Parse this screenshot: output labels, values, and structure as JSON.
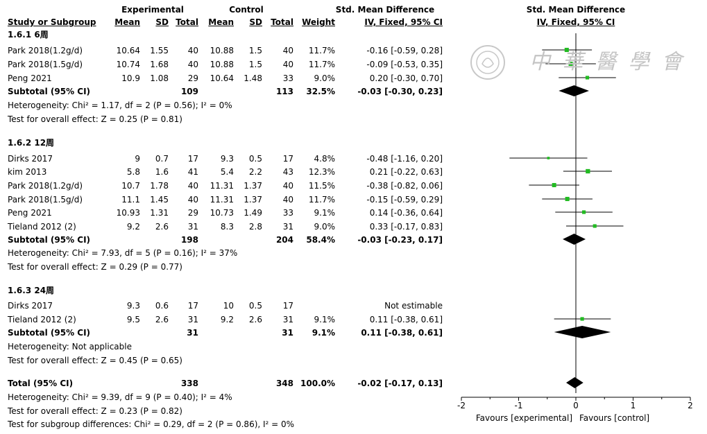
{
  "header": {
    "group_experimental": "Experimental",
    "group_control": "Control",
    "smd_title": "Std. Mean Difference",
    "smd_sub": "IV, Fixed, 95% CI",
    "plot_title": "Std. Mean Difference",
    "plot_sub": "IV, Fixed, 95% CI",
    "cols": {
      "study": "Study or Subgroup",
      "mean": "Mean",
      "sd": "SD",
      "total": "Total",
      "weight": "Weight"
    }
  },
  "watermark_text": "中 華 醫 學 會",
  "subgroups": [
    {
      "title": "1.6.1 6周",
      "studies": [
        {
          "name": "Park 2018(1.2g/d)",
          "em": "10.64",
          "esd": "1.55",
          "et": "40",
          "cm": "10.88",
          "csd": "1.5",
          "ct": "40",
          "w": "11.7%",
          "ci": "-0.16 [-0.59, 0.28]"
        },
        {
          "name": "Park 2018(1.5g/d)",
          "em": "10.74",
          "esd": "1.68",
          "et": "40",
          "cm": "10.88",
          "csd": "1.5",
          "ct": "40",
          "w": "11.7%",
          "ci": "-0.09 [-0.53, 0.35]"
        },
        {
          "name": "Peng 2021",
          "em": "10.9",
          "esd": "1.08",
          "et": "29",
          "cm": "10.64",
          "csd": "1.48",
          "ct": "33",
          "w": "9.0%",
          "ci": "0.20 [-0.30, 0.70]"
        }
      ],
      "subtotal": {
        "label": "Subtotal (95% CI)",
        "et": "109",
        "ct": "113",
        "w": "32.5%",
        "ci": "-0.03 [-0.30, 0.23]"
      },
      "heterogeneity": "Heterogeneity: Chi² = 1.17, df = 2 (P = 0.56); I² = 0%",
      "overall": "Test for overall effect: Z = 0.25 (P = 0.81)"
    },
    {
      "title": "1.6.2 12周",
      "studies": [
        {
          "name": "Dirks 2017",
          "em": "9",
          "esd": "0.7",
          "et": "17",
          "cm": "9.3",
          "csd": "0.5",
          "ct": "17",
          "w": "4.8%",
          "ci": "-0.48 [-1.16, 0.20]"
        },
        {
          "name": "kim 2013",
          "em": "5.8",
          "esd": "1.6",
          "et": "41",
          "cm": "5.4",
          "csd": "2.2",
          "ct": "43",
          "w": "12.3%",
          "ci": "0.21 [-0.22, 0.63]"
        },
        {
          "name": "Park 2018(1.2g/d)",
          "em": "10.7",
          "esd": "1.78",
          "et": "40",
          "cm": "11.31",
          "csd": "1.37",
          "ct": "40",
          "w": "11.5%",
          "ci": "-0.38 [-0.82, 0.06]"
        },
        {
          "name": "Park 2018(1.5g/d)",
          "em": "11.1",
          "esd": "1.45",
          "et": "40",
          "cm": "11.31",
          "csd": "1.37",
          "ct": "40",
          "w": "11.7%",
          "ci": "-0.15 [-0.59, 0.29]"
        },
        {
          "name": "Peng 2021",
          "em": "10.93",
          "esd": "1.31",
          "et": "29",
          "cm": "10.73",
          "csd": "1.49",
          "ct": "33",
          "w": "9.1%",
          "ci": "0.14 [-0.36, 0.64]"
        },
        {
          "name": "Tieland 2012 (2)",
          "em": "9.2",
          "esd": "2.6",
          "et": "31",
          "cm": "8.3",
          "csd": "2.8",
          "ct": "31",
          "w": "9.0%",
          "ci": "0.33 [-0.17, 0.83]"
        }
      ],
      "subtotal": {
        "label": "Subtotal (95% CI)",
        "et": "198",
        "ct": "204",
        "w": "58.4%",
        "ci": "-0.03 [-0.23, 0.17]"
      },
      "heterogeneity": "Heterogeneity: Chi² = 7.93, df = 5 (P = 0.16); I² = 37%",
      "overall": "Test for overall effect: Z = 0.29 (P = 0.77)"
    },
    {
      "title": "1.6.3 24周",
      "studies": [
        {
          "name": "Dirks 2017",
          "em": "9.3",
          "esd": "0.6",
          "et": "17",
          "cm": "10",
          "csd": "0.5",
          "ct": "17",
          "w": "",
          "ci": "Not estimable"
        },
        {
          "name": "Tieland 2012 (2)",
          "em": "9.5",
          "esd": "2.6",
          "et": "31",
          "cm": "9.2",
          "csd": "2.6",
          "ct": "31",
          "w": "9.1%",
          "ci": "0.11 [-0.38, 0.61]"
        }
      ],
      "subtotal": {
        "label": "Subtotal (95% CI)",
        "et": "31",
        "ct": "31",
        "w": "9.1%",
        "ci": "0.11 [-0.38, 0.61]"
      },
      "heterogeneity": "Heterogeneity: Not applicable",
      "overall": "Test for overall effect: Z = 0.45 (P = 0.65)"
    }
  ],
  "total": {
    "label": "Total (95% CI)",
    "et": "338",
    "ct": "348",
    "w": "100.0%",
    "ci": "-0.02 [-0.17, 0.13]"
  },
  "footer": [
    "Heterogeneity: Chi² = 9.39, df = 9 (P = 0.40); I² = 4%",
    "Test for overall effect: Z = 0.23 (P = 0.82)",
    "Test for subgroup differences: Chi² = 0.29, df = 2 (P = 0.86), I² = 0%"
  ],
  "axis": {
    "ticks": [
      "-2",
      "-1",
      "0",
      "1",
      "2"
    ],
    "favours_left": "Favours [experimental]",
    "favours_right": "Favours [control]"
  },
  "colors": {
    "marker": "#22bb22",
    "line": "#000000",
    "watermark": "#bbbbbb"
  },
  "chart_data": {
    "type": "scatter",
    "xlim": [
      -2,
      2
    ],
    "null_line": 0,
    "studies": [
      {
        "group": "1.6.1",
        "est": -0.16,
        "lo": -0.59,
        "hi": 0.28,
        "weight": 11.7
      },
      {
        "group": "1.6.1",
        "est": -0.09,
        "lo": -0.53,
        "hi": 0.35,
        "weight": 11.7
      },
      {
        "group": "1.6.1",
        "est": 0.2,
        "lo": -0.3,
        "hi": 0.7,
        "weight": 9.0
      },
      {
        "group": "1.6.2",
        "est": -0.48,
        "lo": -1.16,
        "hi": 0.2,
        "weight": 4.8
      },
      {
        "group": "1.6.2",
        "est": 0.21,
        "lo": -0.22,
        "hi": 0.63,
        "weight": 12.3
      },
      {
        "group": "1.6.2",
        "est": -0.38,
        "lo": -0.82,
        "hi": 0.06,
        "weight": 11.5
      },
      {
        "group": "1.6.2",
        "est": -0.15,
        "lo": -0.59,
        "hi": 0.29,
        "weight": 11.7
      },
      {
        "group": "1.6.2",
        "est": 0.14,
        "lo": -0.36,
        "hi": 0.64,
        "weight": 9.1
      },
      {
        "group": "1.6.2",
        "est": 0.33,
        "lo": -0.17,
        "hi": 0.83,
        "weight": 9.0
      },
      {
        "group": "1.6.3",
        "est": 0.11,
        "lo": -0.38,
        "hi": 0.61,
        "weight": 9.1
      }
    ],
    "diamonds": [
      {
        "label": "Subtotal 1.6.1",
        "est": -0.03,
        "lo": -0.3,
        "hi": 0.23
      },
      {
        "label": "Subtotal 1.6.2",
        "est": -0.03,
        "lo": -0.23,
        "hi": 0.17
      },
      {
        "label": "Subtotal 1.6.3",
        "est": 0.11,
        "lo": -0.38,
        "hi": 0.61
      },
      {
        "label": "Total",
        "est": -0.02,
        "lo": -0.17,
        "hi": 0.13
      }
    ]
  }
}
